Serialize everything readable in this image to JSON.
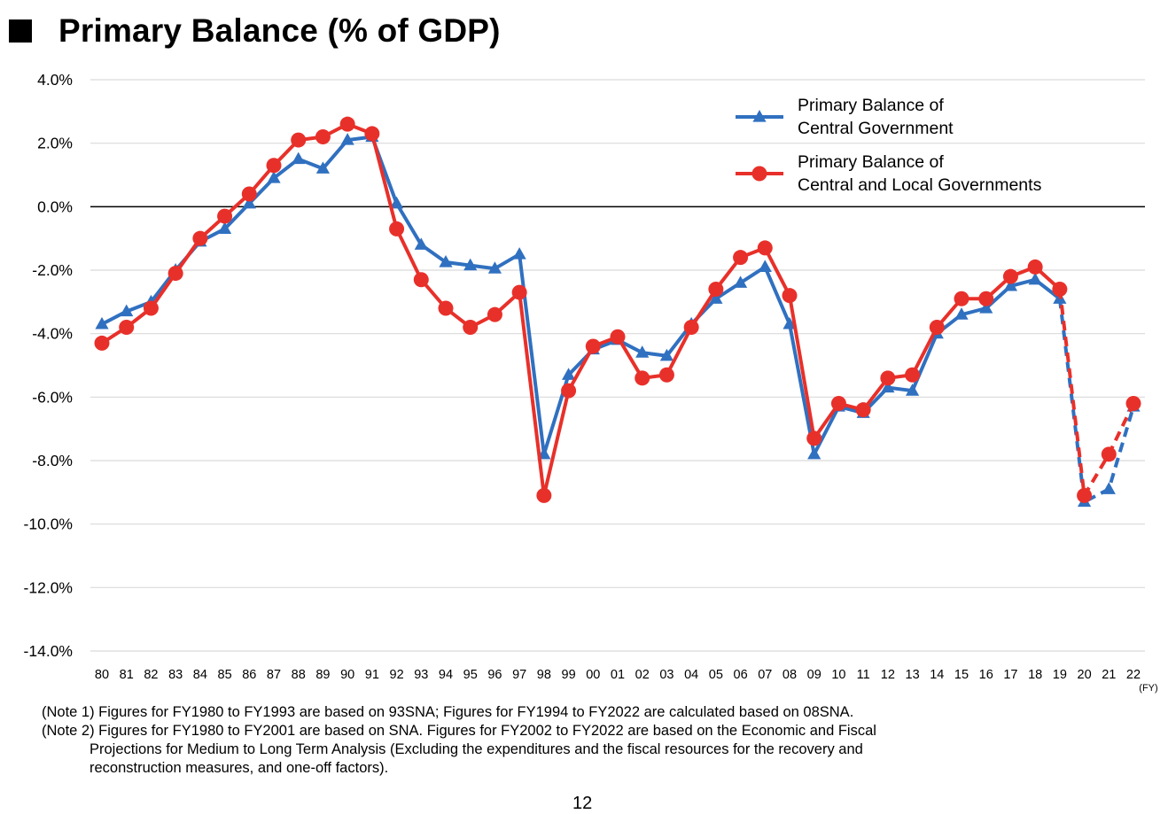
{
  "title": "Primary Balance (% of GDP)",
  "chart_data": {
    "type": "line",
    "title": "Primary Balance (% of GDP)",
    "xlabel": "(FY)",
    "ylabel": "",
    "ylim": [
      -14,
      4
    ],
    "yticks": [
      4,
      2,
      0,
      -2,
      -4,
      -6,
      -8,
      -10,
      -12,
      -14
    ],
    "ytick_labels": [
      "4.0%",
      "2.0%",
      "0.0%",
      "-2.0%",
      "-4.0%",
      "-6.0%",
      "-8.0%",
      "-10.0%",
      "-12.0%",
      "-14.0%"
    ],
    "categories": [
      "80",
      "81",
      "82",
      "83",
      "84",
      "85",
      "86",
      "87",
      "88",
      "89",
      "90",
      "91",
      "92",
      "93",
      "94",
      "95",
      "96",
      "97",
      "98",
      "99",
      "00",
      "01",
      "02",
      "03",
      "04",
      "05",
      "06",
      "07",
      "08",
      "09",
      "10",
      "11",
      "12",
      "13",
      "14",
      "15",
      "16",
      "17",
      "18",
      "19",
      "20",
      "21",
      "22"
    ],
    "projection_start_index": 40,
    "legend_position": "top-right",
    "series": [
      {
        "name_line1": "Primary Balance of",
        "name_line2": "Central Government",
        "color": "#3070c0",
        "marker": "triangle",
        "values": [
          -3.7,
          -3.3,
          -3.0,
          -2.0,
          -1.1,
          -0.7,
          0.1,
          0.9,
          1.5,
          1.2,
          2.1,
          2.2,
          0.1,
          -1.2,
          -1.75,
          -1.85,
          -1.95,
          -1.5,
          -7.8,
          -5.3,
          -4.5,
          -4.2,
          -4.6,
          -4.7,
          -3.7,
          -2.9,
          -2.4,
          -1.9,
          -3.7,
          -7.8,
          -6.3,
          -6.5,
          -5.7,
          -5.8,
          -4.0,
          -3.4,
          -3.2,
          -2.5,
          -2.3,
          -2.9,
          -9.3,
          -8.9,
          -6.3
        ]
      },
      {
        "name_line1": "Primary Balance of",
        "name_line2": "Central and Local Governments",
        "color": "#e8302a",
        "marker": "circle",
        "values": [
          -4.3,
          -3.8,
          -3.2,
          -2.1,
          -1.0,
          -0.3,
          0.4,
          1.3,
          2.1,
          2.2,
          2.6,
          2.3,
          -0.7,
          -2.3,
          -3.2,
          -3.8,
          -3.4,
          -2.7,
          -9.1,
          -5.8,
          -4.4,
          -4.1,
          -5.4,
          -5.3,
          -3.8,
          -2.6,
          -1.6,
          -1.3,
          -2.8,
          -7.3,
          -6.2,
          -6.4,
          -5.4,
          -5.3,
          -3.8,
          -2.9,
          -2.9,
          -2.2,
          -1.9,
          -2.6,
          -9.1,
          -7.8,
          -6.2
        ]
      }
    ]
  },
  "notes": {
    "note1": "(Note 1) Figures for FY1980 to FY1993 are based on 93SNA; Figures for FY1994 to FY2022 are calculated based on 08SNA.",
    "note2_line1": "(Note 2) Figures for FY1980 to FY2001 are based on SNA. Figures for FY2002 to FY2022 are based on the Economic and Fiscal",
    "note2_line2": "Projections for Medium to Long Term Analysis (Excluding the expenditures and the fiscal resources for the recovery and",
    "note2_line3": "reconstruction measures, and one-off factors)."
  },
  "page_number": "12"
}
